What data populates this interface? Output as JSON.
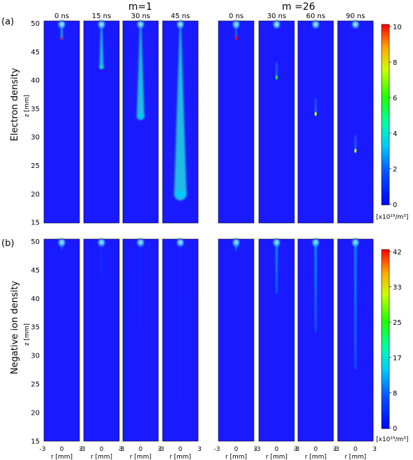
{
  "figure": {
    "group_titles": [
      "m=1",
      "m =26"
    ],
    "row_panels": [
      {
        "label": "(a)",
        "quantity": "Electron density"
      },
      {
        "label": "(b)",
        "quantity": "Negative ion density"
      }
    ],
    "column_times": [
      "0 ns",
      "15 ns",
      "30 ns",
      "45 ns",
      "0 ns",
      "30 ns",
      "60 ns",
      "90 ns"
    ],
    "z_axis": {
      "label": "z [mm]",
      "ticks": [
        "50",
        "45",
        "40",
        "35",
        "30",
        "25",
        "20",
        "15"
      ]
    },
    "r_axis": {
      "label": "r [mm]",
      "tick_left": "-3",
      "tick_mid": "0",
      "tick_right": "3"
    },
    "colorbar_a": {
      "ticks": [
        "10",
        "8",
        "6",
        "4",
        "2",
        "0"
      ],
      "unit": "[x10¹⁹/m³]"
    },
    "colorbar_b": {
      "ticks": [
        "42",
        "33",
        "25",
        "17",
        "8",
        "0"
      ],
      "unit": "[x10¹⁹/m³]"
    }
  },
  "chart_data": [
    {
      "type": "heatmap",
      "title": "Electron density",
      "ylabel": "z [mm]",
      "xlabel": "r [mm]",
      "xlim": [
        -3,
        3
      ],
      "ylim": [
        15,
        50
      ],
      "colorbar_range": [
        0,
        10
      ],
      "colorbar_unit": "[x10¹⁹/m³]",
      "series": [
        {
          "name": "m=1, 0 ns",
          "streamer_head_z_mm": 47.0,
          "max_density": 10
        },
        {
          "name": "m=1, 15 ns",
          "streamer_head_z_mm": 42.0,
          "max_density": 4
        },
        {
          "name": "m=1, 30 ns",
          "streamer_head_z_mm": 33.5,
          "max_density": 3.5
        },
        {
          "name": "m=1, 45 ns",
          "streamer_head_z_mm": 20.0,
          "max_density": 3.5
        },
        {
          "name": "m =26, 0 ns",
          "streamer_head_z_mm": 47.0,
          "max_density": 10
        },
        {
          "name": "m =26, 30 ns",
          "streamer_head_z_mm": 40.2,
          "max_density": 6
        },
        {
          "name": "m =26, 60 ns",
          "streamer_head_z_mm": 33.9,
          "max_density": 7
        },
        {
          "name": "m =26, 90 ns",
          "streamer_head_z_mm": 27.5,
          "max_density": 7
        }
      ]
    },
    {
      "type": "heatmap",
      "title": "Negative ion density",
      "ylabel": "z [mm]",
      "xlabel": "r [mm]",
      "xlim": [
        -3,
        3
      ],
      "ylim": [
        15,
        50
      ],
      "colorbar_range": [
        0,
        42
      ],
      "colorbar_unit": "[x10¹⁹/m³]",
      "series": [
        {
          "name": "m=1, 0 ns",
          "channel_tip_z_mm": 48.0,
          "max_density": 12
        },
        {
          "name": "m=1, 15 ns",
          "channel_tip_z_mm": 42.0,
          "max_density": 6
        },
        {
          "name": "m=1, 30 ns",
          "channel_tip_z_mm": 34.0,
          "max_density": 5
        },
        {
          "name": "m=1, 45 ns",
          "channel_tip_z_mm": 22.0,
          "max_density": 4
        },
        {
          "name": "m =26, 0 ns",
          "channel_tip_z_mm": 48.0,
          "max_density": 12
        },
        {
          "name": "m =26, 30 ns",
          "channel_tip_z_mm": 40.5,
          "max_density": 12
        },
        {
          "name": "m =26, 60 ns",
          "channel_tip_z_mm": 34.0,
          "max_density": 12
        },
        {
          "name": "m =26, 90 ns",
          "channel_tip_z_mm": 27.5,
          "max_density": 12
        }
      ]
    }
  ]
}
